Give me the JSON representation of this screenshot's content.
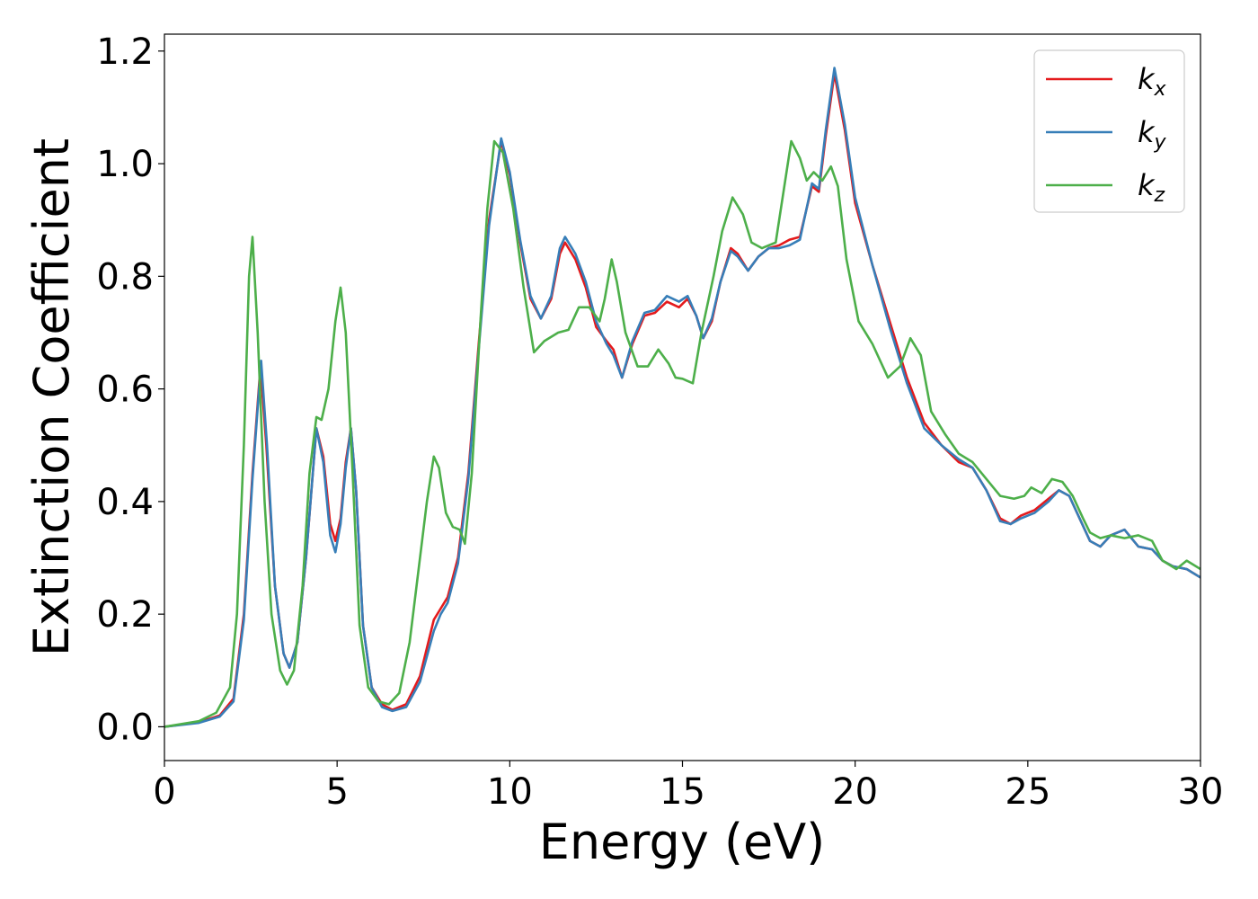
{
  "chart_data": {
    "type": "line",
    "xlabel": "Energy (eV)",
    "ylabel": "Extinction Coefficient",
    "xlim": [
      0,
      30
    ],
    "ylim": [
      -0.06,
      1.23
    ],
    "xticks": [
      0,
      5,
      10,
      15,
      20,
      25,
      30
    ],
    "yticks": [
      0.0,
      0.2,
      0.4,
      0.6,
      0.8,
      1.0,
      1.2
    ],
    "xtick_labels": [
      "0",
      "5",
      "10",
      "15",
      "20",
      "25",
      "30"
    ],
    "ytick_labels": [
      "0.0",
      "0.2",
      "0.4",
      "0.6",
      "0.8",
      "1.0",
      "1.2"
    ],
    "grid": false,
    "legend_position": "top-right",
    "series": [
      {
        "name": "kx",
        "name_base": "k",
        "name_sub": "x",
        "color": "#e41a1c",
        "points": [
          [
            0,
            0
          ],
          [
            1,
            0.008
          ],
          [
            1.6,
            0.02
          ],
          [
            2.0,
            0.05
          ],
          [
            2.3,
            0.2
          ],
          [
            2.55,
            0.45
          ],
          [
            2.78,
            0.64
          ],
          [
            2.95,
            0.5
          ],
          [
            3.2,
            0.25
          ],
          [
            3.45,
            0.13
          ],
          [
            3.62,
            0.105
          ],
          [
            3.85,
            0.15
          ],
          [
            4.1,
            0.3
          ],
          [
            4.4,
            0.53
          ],
          [
            4.6,
            0.48
          ],
          [
            4.8,
            0.36
          ],
          [
            4.95,
            0.33
          ],
          [
            5.1,
            0.37
          ],
          [
            5.25,
            0.47
          ],
          [
            5.4,
            0.53
          ],
          [
            5.55,
            0.42
          ],
          [
            5.75,
            0.18
          ],
          [
            6.0,
            0.07
          ],
          [
            6.3,
            0.04
          ],
          [
            6.6,
            0.03
          ],
          [
            7.0,
            0.04
          ],
          [
            7.4,
            0.09
          ],
          [
            7.8,
            0.19
          ],
          [
            8.0,
            0.21
          ],
          [
            8.2,
            0.23
          ],
          [
            8.5,
            0.3
          ],
          [
            8.8,
            0.45
          ],
          [
            9.1,
            0.68
          ],
          [
            9.4,
            0.9
          ],
          [
            9.75,
            1.04
          ],
          [
            10.0,
            0.98
          ],
          [
            10.3,
            0.86
          ],
          [
            10.6,
            0.76
          ],
          [
            10.9,
            0.725
          ],
          [
            11.2,
            0.76
          ],
          [
            11.45,
            0.84
          ],
          [
            11.6,
            0.86
          ],
          [
            11.9,
            0.83
          ],
          [
            12.2,
            0.78
          ],
          [
            12.5,
            0.71
          ],
          [
            12.8,
            0.685
          ],
          [
            13.0,
            0.67
          ],
          [
            13.25,
            0.62
          ],
          [
            13.55,
            0.68
          ],
          [
            13.9,
            0.73
          ],
          [
            14.2,
            0.735
          ],
          [
            14.55,
            0.755
          ],
          [
            14.9,
            0.745
          ],
          [
            15.15,
            0.76
          ],
          [
            15.4,
            0.73
          ],
          [
            15.6,
            0.69
          ],
          [
            15.85,
            0.72
          ],
          [
            16.1,
            0.79
          ],
          [
            16.4,
            0.85
          ],
          [
            16.6,
            0.84
          ],
          [
            16.9,
            0.81
          ],
          [
            17.2,
            0.835
          ],
          [
            17.5,
            0.85
          ],
          [
            17.8,
            0.855
          ],
          [
            18.1,
            0.865
          ],
          [
            18.4,
            0.87
          ],
          [
            18.75,
            0.96
          ],
          [
            18.95,
            0.95
          ],
          [
            19.15,
            1.05
          ],
          [
            19.4,
            1.16
          ],
          [
            19.7,
            1.06
          ],
          [
            20.0,
            0.93
          ],
          [
            20.5,
            0.82
          ],
          [
            21.0,
            0.72
          ],
          [
            21.5,
            0.62
          ],
          [
            22.0,
            0.54
          ],
          [
            22.5,
            0.5
          ],
          [
            23.0,
            0.47
          ],
          [
            23.4,
            0.46
          ],
          [
            23.8,
            0.42
          ],
          [
            24.2,
            0.37
          ],
          [
            24.5,
            0.36
          ],
          [
            24.8,
            0.375
          ],
          [
            25.2,
            0.385
          ],
          [
            25.6,
            0.405
          ],
          [
            25.9,
            0.42
          ],
          [
            26.2,
            0.41
          ],
          [
            26.5,
            0.37
          ],
          [
            26.8,
            0.33
          ],
          [
            27.1,
            0.32
          ],
          [
            27.4,
            0.34
          ],
          [
            27.8,
            0.35
          ],
          [
            28.2,
            0.32
          ],
          [
            28.6,
            0.315
          ],
          [
            28.9,
            0.295
          ],
          [
            29.2,
            0.285
          ],
          [
            29.6,
            0.28
          ],
          [
            30.0,
            0.265
          ]
        ]
      },
      {
        "name": "ky",
        "name_base": "k",
        "name_sub": "y",
        "color": "#377eb8",
        "points": [
          [
            0,
            0
          ],
          [
            1,
            0.007
          ],
          [
            1.6,
            0.018
          ],
          [
            2.0,
            0.045
          ],
          [
            2.3,
            0.19
          ],
          [
            2.55,
            0.44
          ],
          [
            2.8,
            0.65
          ],
          [
            2.97,
            0.5
          ],
          [
            3.2,
            0.25
          ],
          [
            3.45,
            0.13
          ],
          [
            3.62,
            0.105
          ],
          [
            3.85,
            0.15
          ],
          [
            4.1,
            0.3
          ],
          [
            4.4,
            0.53
          ],
          [
            4.6,
            0.47
          ],
          [
            4.8,
            0.34
          ],
          [
            4.95,
            0.31
          ],
          [
            5.1,
            0.36
          ],
          [
            5.25,
            0.46
          ],
          [
            5.4,
            0.53
          ],
          [
            5.55,
            0.42
          ],
          [
            5.75,
            0.18
          ],
          [
            6.0,
            0.07
          ],
          [
            6.3,
            0.035
          ],
          [
            6.6,
            0.028
          ],
          [
            7.0,
            0.035
          ],
          [
            7.4,
            0.08
          ],
          [
            7.8,
            0.17
          ],
          [
            8.0,
            0.2
          ],
          [
            8.2,
            0.22
          ],
          [
            8.5,
            0.29
          ],
          [
            8.8,
            0.44
          ],
          [
            9.1,
            0.67
          ],
          [
            9.4,
            0.89
          ],
          [
            9.75,
            1.045
          ],
          [
            10.0,
            0.985
          ],
          [
            10.3,
            0.865
          ],
          [
            10.6,
            0.765
          ],
          [
            10.9,
            0.725
          ],
          [
            11.2,
            0.765
          ],
          [
            11.45,
            0.85
          ],
          [
            11.6,
            0.87
          ],
          [
            11.9,
            0.84
          ],
          [
            12.2,
            0.79
          ],
          [
            12.5,
            0.72
          ],
          [
            12.8,
            0.68
          ],
          [
            13.0,
            0.66
          ],
          [
            13.25,
            0.62
          ],
          [
            13.55,
            0.685
          ],
          [
            13.9,
            0.735
          ],
          [
            14.2,
            0.74
          ],
          [
            14.55,
            0.765
          ],
          [
            14.9,
            0.755
          ],
          [
            15.15,
            0.765
          ],
          [
            15.4,
            0.73
          ],
          [
            15.6,
            0.69
          ],
          [
            15.85,
            0.725
          ],
          [
            16.1,
            0.79
          ],
          [
            16.4,
            0.845
          ],
          [
            16.6,
            0.835
          ],
          [
            16.9,
            0.81
          ],
          [
            17.2,
            0.835
          ],
          [
            17.5,
            0.85
          ],
          [
            17.8,
            0.85
          ],
          [
            18.1,
            0.855
          ],
          [
            18.4,
            0.865
          ],
          [
            18.75,
            0.965
          ],
          [
            18.95,
            0.955
          ],
          [
            19.15,
            1.06
          ],
          [
            19.4,
            1.17
          ],
          [
            19.7,
            1.07
          ],
          [
            20.0,
            0.94
          ],
          [
            20.5,
            0.82
          ],
          [
            21.0,
            0.71
          ],
          [
            21.5,
            0.61
          ],
          [
            22.0,
            0.53
          ],
          [
            22.5,
            0.5
          ],
          [
            23.0,
            0.475
          ],
          [
            23.4,
            0.46
          ],
          [
            23.8,
            0.42
          ],
          [
            24.2,
            0.365
          ],
          [
            24.5,
            0.36
          ],
          [
            24.8,
            0.37
          ],
          [
            25.2,
            0.38
          ],
          [
            25.6,
            0.4
          ],
          [
            25.9,
            0.42
          ],
          [
            26.2,
            0.41
          ],
          [
            26.5,
            0.37
          ],
          [
            26.8,
            0.33
          ],
          [
            27.1,
            0.32
          ],
          [
            27.4,
            0.34
          ],
          [
            27.8,
            0.35
          ],
          [
            28.2,
            0.32
          ],
          [
            28.6,
            0.315
          ],
          [
            28.9,
            0.295
          ],
          [
            29.2,
            0.285
          ],
          [
            29.6,
            0.28
          ],
          [
            30.0,
            0.265
          ]
        ]
      },
      {
        "name": "kz",
        "name_base": "k",
        "name_sub": "z",
        "color": "#4daf4a",
        "points": [
          [
            0,
            0
          ],
          [
            1,
            0.01
          ],
          [
            1.5,
            0.025
          ],
          [
            1.9,
            0.07
          ],
          [
            2.1,
            0.2
          ],
          [
            2.3,
            0.5
          ],
          [
            2.45,
            0.8
          ],
          [
            2.55,
            0.87
          ],
          [
            2.7,
            0.7
          ],
          [
            2.9,
            0.4
          ],
          [
            3.1,
            0.2
          ],
          [
            3.35,
            0.1
          ],
          [
            3.55,
            0.075
          ],
          [
            3.75,
            0.1
          ],
          [
            4.0,
            0.25
          ],
          [
            4.2,
            0.45
          ],
          [
            4.4,
            0.55
          ],
          [
            4.55,
            0.545
          ],
          [
            4.75,
            0.6
          ],
          [
            4.95,
            0.72
          ],
          [
            5.1,
            0.78
          ],
          [
            5.25,
            0.7
          ],
          [
            5.45,
            0.45
          ],
          [
            5.65,
            0.18
          ],
          [
            5.9,
            0.07
          ],
          [
            6.2,
            0.045
          ],
          [
            6.5,
            0.04
          ],
          [
            6.8,
            0.06
          ],
          [
            7.1,
            0.15
          ],
          [
            7.4,
            0.3
          ],
          [
            7.6,
            0.4
          ],
          [
            7.8,
            0.48
          ],
          [
            7.95,
            0.46
          ],
          [
            8.15,
            0.38
          ],
          [
            8.35,
            0.355
          ],
          [
            8.55,
            0.35
          ],
          [
            8.7,
            0.325
          ],
          [
            8.9,
            0.45
          ],
          [
            9.15,
            0.72
          ],
          [
            9.35,
            0.92
          ],
          [
            9.55,
            1.04
          ],
          [
            9.8,
            1.02
          ],
          [
            10.1,
            0.92
          ],
          [
            10.4,
            0.78
          ],
          [
            10.7,
            0.665
          ],
          [
            11.0,
            0.685
          ],
          [
            11.4,
            0.7
          ],
          [
            11.7,
            0.705
          ],
          [
            12.0,
            0.745
          ],
          [
            12.3,
            0.745
          ],
          [
            12.6,
            0.72
          ],
          [
            12.75,
            0.76
          ],
          [
            12.95,
            0.83
          ],
          [
            13.1,
            0.79
          ],
          [
            13.35,
            0.7
          ],
          [
            13.7,
            0.64
          ],
          [
            14.0,
            0.64
          ],
          [
            14.3,
            0.67
          ],
          [
            14.6,
            0.645
          ],
          [
            14.8,
            0.62
          ],
          [
            15.0,
            0.618
          ],
          [
            15.3,
            0.61
          ],
          [
            15.55,
            0.7
          ],
          [
            15.9,
            0.8
          ],
          [
            16.15,
            0.88
          ],
          [
            16.45,
            0.94
          ],
          [
            16.75,
            0.91
          ],
          [
            17.0,
            0.86
          ],
          [
            17.3,
            0.85
          ],
          [
            17.7,
            0.86
          ],
          [
            17.95,
            0.96
          ],
          [
            18.15,
            1.04
          ],
          [
            18.4,
            1.01
          ],
          [
            18.6,
            0.97
          ],
          [
            18.8,
            0.985
          ],
          [
            19.05,
            0.97
          ],
          [
            19.3,
            0.995
          ],
          [
            19.5,
            0.96
          ],
          [
            19.75,
            0.83
          ],
          [
            20.1,
            0.72
          ],
          [
            20.5,
            0.68
          ],
          [
            20.95,
            0.62
          ],
          [
            21.3,
            0.64
          ],
          [
            21.6,
            0.69
          ],
          [
            21.9,
            0.66
          ],
          [
            22.2,
            0.56
          ],
          [
            22.6,
            0.52
          ],
          [
            23.0,
            0.485
          ],
          [
            23.4,
            0.47
          ],
          [
            23.8,
            0.44
          ],
          [
            24.2,
            0.41
          ],
          [
            24.6,
            0.405
          ],
          [
            24.9,
            0.41
          ],
          [
            25.1,
            0.425
          ],
          [
            25.4,
            0.415
          ],
          [
            25.7,
            0.44
          ],
          [
            26.0,
            0.435
          ],
          [
            26.3,
            0.41
          ],
          [
            26.6,
            0.37
          ],
          [
            26.8,
            0.345
          ],
          [
            27.1,
            0.335
          ],
          [
            27.4,
            0.34
          ],
          [
            27.8,
            0.335
          ],
          [
            28.2,
            0.34
          ],
          [
            28.6,
            0.33
          ],
          [
            28.9,
            0.295
          ],
          [
            29.3,
            0.28
          ],
          [
            29.6,
            0.295
          ],
          [
            30.0,
            0.28
          ]
        ]
      }
    ]
  }
}
